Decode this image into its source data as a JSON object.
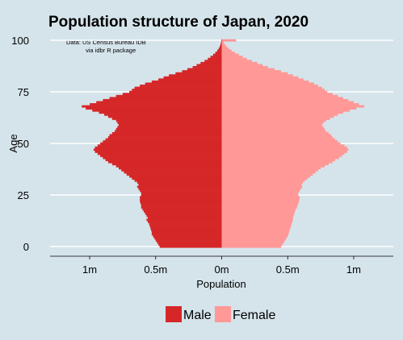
{
  "colors": {
    "background": "#d5e4eb",
    "male": "#d62728",
    "female": "#ff9896",
    "grid": "#ffffff"
  },
  "chart_data": {
    "type": "bar",
    "orientation": "horizontal-pyramid",
    "title": "Population structure of Japan, 2020",
    "note_lines": [
      "Data: US Census Bureau IDB",
      "via idbr R package"
    ],
    "xlabel": "Population",
    "ylabel": "Age",
    "xlim": [
      -1300000,
      1300000
    ],
    "ylim": [
      -1,
      101
    ],
    "x_ticks": [
      {
        "value": -1000000,
        "label": "1m"
      },
      {
        "value": -500000,
        "label": "0.5m"
      },
      {
        "value": 0,
        "label": "0m"
      },
      {
        "value": 500000,
        "label": "0.5m"
      },
      {
        "value": 1000000,
        "label": "1m"
      }
    ],
    "y_ticks": [
      {
        "value": 0,
        "label": "0"
      },
      {
        "value": 25,
        "label": "25"
      },
      {
        "value": 50,
        "label": "50"
      },
      {
        "value": 75,
        "label": "75"
      },
      {
        "value": 100,
        "label": "100"
      }
    ],
    "legend": {
      "position": "bottom"
    },
    "ages": [
      0,
      1,
      2,
      3,
      4,
      5,
      6,
      7,
      8,
      9,
      10,
      11,
      12,
      13,
      14,
      15,
      16,
      17,
      18,
      19,
      20,
      21,
      22,
      23,
      24,
      25,
      26,
      27,
      28,
      29,
      30,
      31,
      32,
      33,
      34,
      35,
      36,
      37,
      38,
      39,
      40,
      41,
      42,
      43,
      44,
      45,
      46,
      47,
      48,
      49,
      50,
      51,
      52,
      53,
      54,
      55,
      56,
      57,
      58,
      59,
      60,
      61,
      62,
      63,
      64,
      65,
      66,
      67,
      68,
      69,
      70,
      71,
      72,
      73,
      74,
      75,
      76,
      77,
      78,
      79,
      80,
      81,
      82,
      83,
      84,
      85,
      86,
      87,
      88,
      89,
      90,
      91,
      92,
      93,
      94,
      95,
      96,
      97,
      98,
      99,
      100
    ],
    "series": [
      {
        "name": "Male",
        "values": [
          470000,
          480000,
          490000,
          500000,
          510000,
          520000,
          530000,
          530000,
          535000,
          540000,
          545000,
          550000,
          560000,
          570000,
          560000,
          570000,
          580000,
          590000,
          600000,
          610000,
          610000,
          615000,
          620000,
          620000,
          620000,
          610000,
          610000,
          620000,
          630000,
          640000,
          630000,
          640000,
          660000,
          680000,
          700000,
          720000,
          740000,
          760000,
          780000,
          800000,
          830000,
          860000,
          880000,
          900000,
          920000,
          940000,
          960000,
          970000,
          960000,
          940000,
          920000,
          900000,
          880000,
          860000,
          850000,
          830000,
          810000,
          800000,
          790000,
          780000,
          790000,
          800000,
          830000,
          860000,
          890000,
          930000,
          980000,
          1030000,
          1060000,
          1000000,
          950000,
          900000,
          850000,
          800000,
          750000,
          700000,
          680000,
          660000,
          620000,
          580000,
          530000,
          480000,
          440000,
          400000,
          350000,
          300000,
          260000,
          220000,
          190000,
          160000,
          130000,
          105000,
          85000,
          65000,
          48000,
          34000,
          23000,
          15000,
          9000,
          5000,
          3000
        ]
      },
      {
        "name": "Female",
        "values": [
          450000,
          460000,
          470000,
          480000,
          490000,
          500000,
          505000,
          510000,
          515000,
          520000,
          525000,
          530000,
          535000,
          540000,
          540000,
          545000,
          550000,
          555000,
          560000,
          570000,
          575000,
          580000,
          585000,
          590000,
          590000,
          580000,
          580000,
          590000,
          600000,
          610000,
          605000,
          615000,
          630000,
          650000,
          670000,
          690000,
          710000,
          730000,
          750000,
          780000,
          810000,
          840000,
          860000,
          890000,
          910000,
          930000,
          950000,
          960000,
          950000,
          930000,
          900000,
          880000,
          860000,
          840000,
          830000,
          810000,
          790000,
          780000,
          770000,
          760000,
          770000,
          790000,
          820000,
          850000,
          880000,
          920000,
          970000,
          1020000,
          1080000,
          1040000,
          1000000,
          960000,
          920000,
          880000,
          840000,
          800000,
          780000,
          760000,
          730000,
          700000,
          660000,
          620000,
          580000,
          540000,
          500000,
          450000,
          400000,
          350000,
          310000,
          270000,
          230000,
          190000,
          160000,
          130000,
          100000,
          75000,
          55000,
          38000,
          25000,
          15000,
          110000
        ]
      }
    ]
  }
}
